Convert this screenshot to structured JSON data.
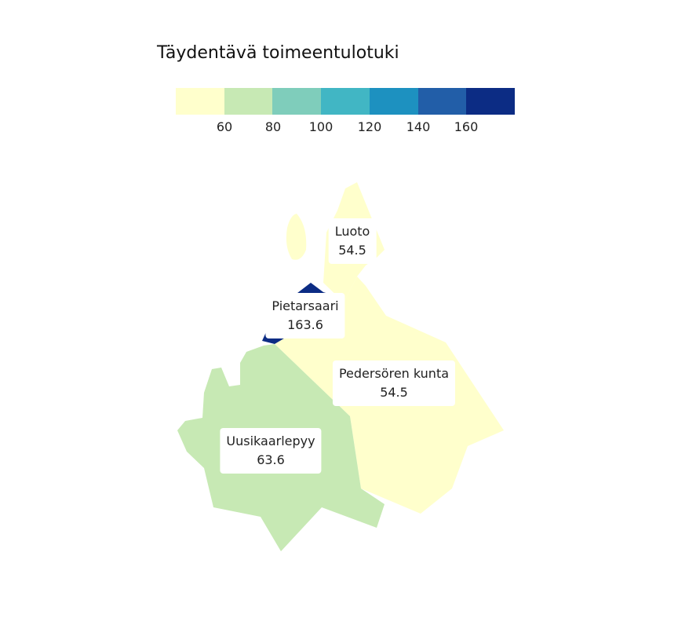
{
  "title": "Täydentävä toimeentulotuki",
  "legend": {
    "colors": [
      "#ffffcc",
      "#c7e9b4",
      "#7fcdbb",
      "#41b6c4",
      "#1d91c0",
      "#225ea8",
      "#0c2c84"
    ],
    "breaks": [
      "60",
      "80",
      "100",
      "120",
      "140",
      "160"
    ]
  },
  "regions": [
    {
      "name": "Luoto",
      "value": "54.5",
      "color": "#ffffcc"
    },
    {
      "name": "Pietarsaari",
      "value": "163.6",
      "color": "#0c2c84"
    },
    {
      "name": "Pedersören kunta",
      "value": "54.5",
      "color": "#ffffcc"
    },
    {
      "name": "Uusikaarlepyy",
      "value": "63.6",
      "color": "#c7e9b4"
    }
  ]
}
